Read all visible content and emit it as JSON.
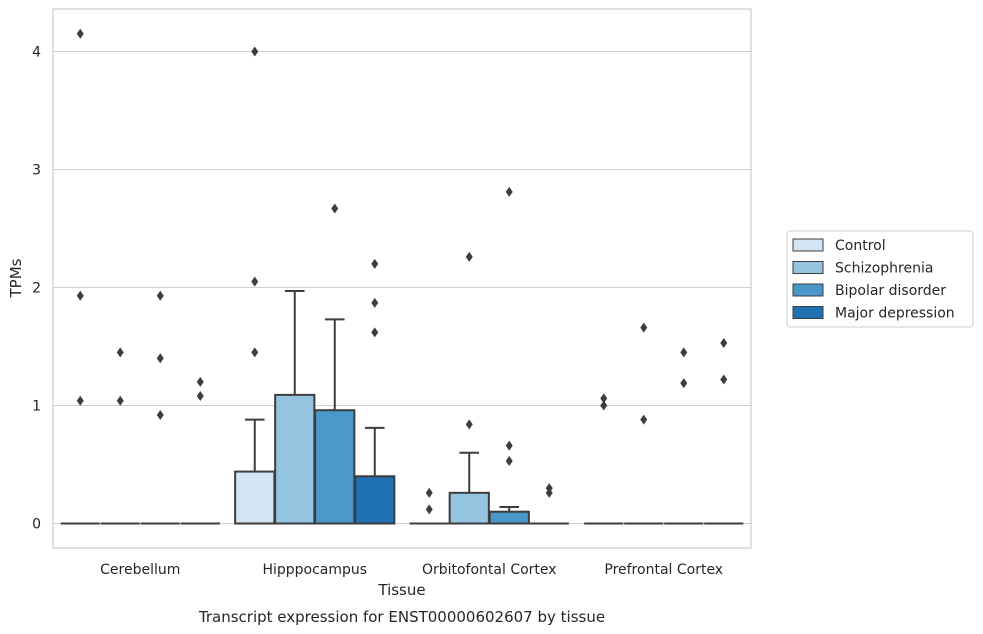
{
  "chart_data": {
    "type": "box",
    "xlabel": "Tissue",
    "ylabel": "TPMs",
    "caption": "Transcript expression for ENST00000602607 by tissue",
    "ylim": [
      -0.2,
      4.37
    ],
    "yticks": [
      0,
      1,
      2,
      3,
      4
    ],
    "grid": "horizontal",
    "legend_position": "right",
    "categories": [
      "Cerebellum",
      "Hipppocampus",
      "Orbitofontal Cortex",
      "Prefrontal Cortex"
    ],
    "series": [
      {
        "name": "Control",
        "color": "#d3e4f3",
        "boxes": [
          {
            "q1": 0,
            "median": 0,
            "q3": 0,
            "whisker_low": 0,
            "whisker_high": 0,
            "outliers": [
              4.15,
              1.93,
              1.04
            ]
          },
          {
            "q1": 0,
            "median": 0,
            "q3": 0.44,
            "whisker_low": 0,
            "whisker_high": 0.88,
            "outliers": [
              4.0,
              2.05,
              1.45
            ]
          },
          {
            "q1": 0,
            "median": 0,
            "q3": 0,
            "whisker_low": 0,
            "whisker_high": 0,
            "outliers": [
              0.26,
              0.12
            ]
          },
          {
            "q1": 0,
            "median": 0,
            "q3": 0,
            "whisker_low": 0,
            "whisker_high": 0,
            "outliers": [
              1.06,
              1.0
            ]
          }
        ]
      },
      {
        "name": "Schizophrenia",
        "color": "#94c4df",
        "boxes": [
          {
            "q1": 0,
            "median": 0,
            "q3": 0,
            "whisker_low": 0,
            "whisker_high": 0,
            "outliers": [
              1.45,
              1.04
            ]
          },
          {
            "q1": 0,
            "median": 0,
            "q3": 1.09,
            "whisker_low": 0,
            "whisker_high": 1.97,
            "outliers": []
          },
          {
            "q1": 0,
            "median": 0,
            "q3": 0.26,
            "whisker_low": 0,
            "whisker_high": 0.6,
            "outliers": [
              2.26,
              0.84
            ]
          },
          {
            "q1": 0,
            "median": 0,
            "q3": 0,
            "whisker_low": 0,
            "whisker_high": 0,
            "outliers": [
              1.66,
              0.88
            ]
          }
        ]
      },
      {
        "name": "Bipolar disorder",
        "color": "#4a98c9",
        "boxes": [
          {
            "q1": 0,
            "median": 0,
            "q3": 0,
            "whisker_low": 0,
            "whisker_high": 0,
            "outliers": [
              1.93,
              1.4,
              0.92
            ]
          },
          {
            "q1": 0,
            "median": 0,
            "q3": 0.96,
            "whisker_low": 0,
            "whisker_high": 1.73,
            "outliers": [
              2.67
            ]
          },
          {
            "q1": 0,
            "median": 0,
            "q3": 0.1,
            "whisker_low": 0,
            "whisker_high": 0.14,
            "outliers": [
              2.81,
              0.66,
              0.53
            ]
          },
          {
            "q1": 0,
            "median": 0,
            "q3": 0,
            "whisker_low": 0,
            "whisker_high": 0,
            "outliers": [
              1.45,
              1.19
            ]
          }
        ]
      },
      {
        "name": "Major depression",
        "color": "#2070b4",
        "boxes": [
          {
            "q1": 0,
            "median": 0,
            "q3": 0,
            "whisker_low": 0,
            "whisker_high": 0,
            "outliers": [
              1.2,
              1.08
            ]
          },
          {
            "q1": 0,
            "median": 0,
            "q3": 0.4,
            "whisker_low": 0,
            "whisker_high": 0.81,
            "outliers": [
              2.2,
              1.87,
              1.62
            ]
          },
          {
            "q1": 0,
            "median": 0,
            "q3": 0,
            "whisker_low": 0,
            "whisker_high": 0,
            "outliers": [
              0.3,
              0.26
            ]
          },
          {
            "q1": 0,
            "median": 0,
            "q3": 0,
            "whisker_low": 0,
            "whisker_high": 0,
            "outliers": [
              1.53,
              1.22
            ]
          }
        ]
      }
    ]
  }
}
